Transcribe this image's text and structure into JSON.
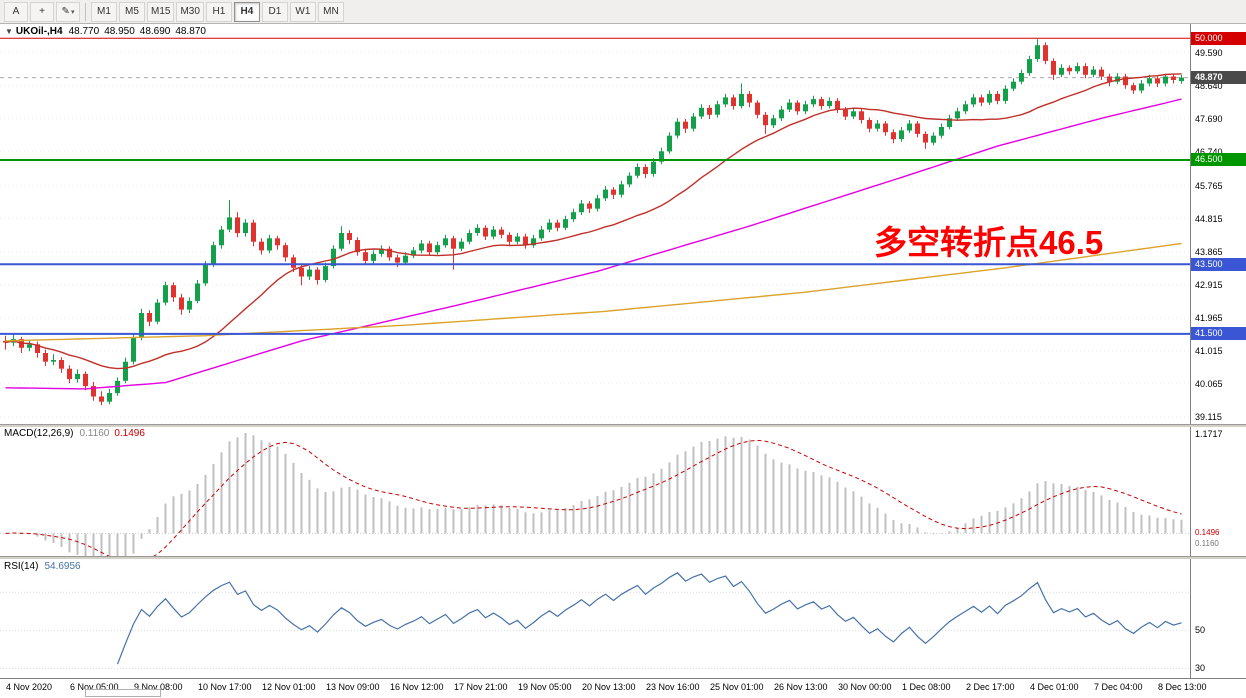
{
  "toolbar": {
    "buttons": [
      {
        "name": "text-tool-button",
        "label": "A"
      },
      {
        "name": "crosshair-button",
        "label": "+"
      },
      {
        "name": "draw-tools-button",
        "label": "✎",
        "dropdown": "▾"
      }
    ],
    "timeframes": [
      "M1",
      "M5",
      "M15",
      "M30",
      "H1",
      "H4",
      "D1",
      "W1",
      "MN"
    ],
    "active_timeframe": "H4"
  },
  "main_chart": {
    "symbol_line": {
      "collapse_icon": "▼",
      "symbol": "UKOil-,H4",
      "open": "48.770",
      "high": "48.950",
      "low": "48.690",
      "close": "48.870"
    },
    "annotation": {
      "text": "多空转折点46.5",
      "color": "#FF0000"
    },
    "price_axis_labels": [
      {
        "text": "49.590",
        "value": 49.59
      },
      {
        "text": "48.640",
        "value": 48.64
      },
      {
        "text": "47.690",
        "value": 47.69
      },
      {
        "text": "46.740",
        "value": 46.74
      },
      {
        "text": "45.765",
        "value": 45.765
      },
      {
        "text": "44.815",
        "value": 44.815
      },
      {
        "text": "43.865",
        "value": 43.865
      },
      {
        "text": "42.915",
        "value": 42.915
      },
      {
        "text": "41.965",
        "value": 41.965
      },
      {
        "text": "41.015",
        "value": 41.015
      },
      {
        "text": "40.065",
        "value": 40.065
      },
      {
        "text": "39.115",
        "value": 39.115
      }
    ],
    "bid": {
      "price": 48.87,
      "tag": "48.870",
      "tag_color": "#4a4a4a"
    },
    "hlines": [
      {
        "price": 50.0,
        "tag": "50.000",
        "color": "#d40000",
        "width": 1
      },
      {
        "price": 46.5,
        "tag": "46.500",
        "color": "#009600",
        "width": 2
      },
      {
        "price": 43.5,
        "tag": "43.500",
        "color": "#3a56d4",
        "width": 2
      },
      {
        "price": 41.5,
        "tag": "41.500",
        "color": "#3a56d4",
        "width": 2
      }
    ]
  },
  "macd_panel": {
    "name": "MACD(12,26,9)",
    "value_main": "0.1160",
    "value_signal": "0.1496",
    "axis_top": "1.1717",
    "value_tags": [
      {
        "text": "0.1496",
        "color": "#cc0000"
      },
      {
        "text": "0.1160",
        "color": "#777777"
      }
    ],
    "histogram_color": "#c0c0c0",
    "signal_color": "#cc0000"
  },
  "rsi_panel": {
    "name": "RSI(14)",
    "value": "54.6956",
    "line_color": "#4572a7",
    "axis_labels": [
      {
        "text": "50",
        "value": 50
      },
      {
        "text": "30",
        "value": 30
      }
    ]
  },
  "time_axis": {
    "labels": [
      "4 Nov 2020",
      "6 Nov 05:00",
      "9 Nov 08:00",
      "10 Nov 17:00",
      "12 Nov 01:00",
      "13 Nov 09:00",
      "16 Nov 12:00",
      "17 Nov 21:00",
      "19 Nov 05:00",
      "20 Nov 13:00",
      "23 Nov 16:00",
      "25 Nov 01:00",
      "26 Nov 13:00",
      "30 Nov 00:00",
      "1 Dec 08:00",
      "2 Dec 17:00",
      "4 Dec 01:00",
      "7 Dec 04:00",
      "8 Dec 13:00"
    ]
  },
  "chart_data": {
    "type": "candlestick",
    "symbol": "UKOil-",
    "timeframe": "H4",
    "title": "UKOil-,H4 48.770 48.950 48.690 48.870",
    "ylim": [
      38.91,
      50.41
    ],
    "up_color": "#14a04a",
    "down_color": "#e0322e",
    "candles": [
      [
        41.3,
        41.45,
        41.05,
        41.25
      ],
      [
        41.25,
        41.5,
        41.15,
        41.35
      ],
      [
        41.35,
        41.42,
        40.95,
        41.1
      ],
      [
        41.1,
        41.32,
        41.0,
        41.2
      ],
      [
        41.2,
        41.28,
        40.82,
        40.95
      ],
      [
        40.95,
        41.05,
        40.58,
        40.7
      ],
      [
        40.7,
        40.92,
        40.6,
        40.75
      ],
      [
        40.75,
        40.83,
        40.38,
        40.5
      ],
      [
        40.5,
        40.6,
        40.08,
        40.2
      ],
      [
        40.2,
        40.48,
        40.1,
        40.35
      ],
      [
        40.35,
        40.42,
        39.88,
        40.0
      ],
      [
        40.0,
        40.12,
        39.58,
        39.7
      ],
      [
        39.7,
        39.85,
        39.45,
        39.55
      ],
      [
        39.55,
        39.92,
        39.48,
        39.8
      ],
      [
        39.8,
        40.25,
        39.72,
        40.15
      ],
      [
        40.15,
        40.82,
        40.08,
        40.7
      ],
      [
        40.7,
        41.52,
        40.62,
        41.4
      ],
      [
        41.4,
        42.22,
        41.32,
        42.1
      ],
      [
        42.1,
        42.18,
        41.72,
        41.85
      ],
      [
        41.85,
        42.5,
        41.78,
        42.4
      ],
      [
        42.4,
        43.0,
        42.32,
        42.9
      ],
      [
        42.9,
        42.98,
        42.42,
        42.55
      ],
      [
        42.55,
        42.65,
        42.05,
        42.2
      ],
      [
        42.2,
        42.55,
        42.1,
        42.45
      ],
      [
        42.45,
        43.05,
        42.38,
        42.95
      ],
      [
        42.95,
        43.6,
        42.88,
        43.5
      ],
      [
        43.5,
        44.15,
        43.42,
        44.05
      ],
      [
        44.05,
        44.6,
        43.95,
        44.5
      ],
      [
        44.5,
        45.35,
        44.42,
        44.85
      ],
      [
        44.85,
        45.0,
        44.28,
        44.4
      ],
      [
        44.4,
        44.8,
        44.3,
        44.7
      ],
      [
        44.7,
        44.78,
        44.02,
        44.15
      ],
      [
        44.15,
        44.25,
        43.78,
        43.9
      ],
      [
        43.9,
        44.35,
        43.82,
        44.25
      ],
      [
        44.25,
        44.32,
        43.92,
        44.05
      ],
      [
        44.05,
        44.12,
        43.58,
        43.7
      ],
      [
        43.7,
        43.78,
        43.28,
        43.4
      ],
      [
        43.4,
        43.48,
        42.9,
        43.15
      ],
      [
        43.15,
        43.45,
        43.05,
        43.35
      ],
      [
        43.35,
        43.42,
        42.92,
        43.05
      ],
      [
        43.05,
        43.55,
        42.98,
        43.45
      ],
      [
        43.45,
        44.05,
        43.38,
        43.95
      ],
      [
        43.95,
        44.6,
        43.88,
        44.4
      ],
      [
        44.4,
        44.48,
        44.08,
        44.2
      ],
      [
        44.2,
        44.28,
        43.75,
        43.85
      ],
      [
        43.85,
        43.95,
        43.48,
        43.6
      ],
      [
        43.6,
        43.9,
        43.52,
        43.8
      ],
      [
        43.8,
        44.05,
        43.72,
        43.95
      ],
      [
        43.95,
        44.02,
        43.6,
        43.7
      ],
      [
        43.7,
        43.78,
        43.42,
        43.55
      ],
      [
        43.55,
        43.85,
        43.48,
        43.75
      ],
      [
        43.75,
        44.0,
        43.68,
        43.9
      ],
      [
        43.9,
        44.2,
        43.82,
        44.1
      ],
      [
        44.1,
        44.18,
        43.75,
        43.85
      ],
      [
        43.85,
        44.15,
        43.78,
        44.05
      ],
      [
        44.05,
        44.35,
        43.98,
        44.25
      ],
      [
        44.25,
        44.32,
        43.35,
        43.95
      ],
      [
        43.95,
        44.25,
        43.88,
        44.15
      ],
      [
        44.15,
        44.5,
        44.08,
        44.4
      ],
      [
        44.4,
        44.65,
        44.32,
        44.55
      ],
      [
        44.55,
        44.62,
        44.2,
        44.3
      ],
      [
        44.3,
        44.6,
        44.22,
        44.5
      ],
      [
        44.5,
        44.58,
        44.25,
        44.35
      ],
      [
        44.35,
        44.42,
        44.05,
        44.15
      ],
      [
        44.15,
        44.4,
        44.08,
        44.3
      ],
      [
        44.3,
        44.38,
        43.95,
        44.05
      ],
      [
        44.05,
        44.35,
        43.98,
        44.25
      ],
      [
        44.25,
        44.6,
        44.18,
        44.5
      ],
      [
        44.5,
        44.8,
        44.42,
        44.7
      ],
      [
        44.7,
        44.78,
        44.45,
        44.55
      ],
      [
        44.55,
        44.9,
        44.48,
        44.8
      ],
      [
        44.8,
        45.1,
        44.72,
        45.0
      ],
      [
        45.0,
        45.35,
        44.92,
        45.25
      ],
      [
        45.25,
        45.32,
        44.98,
        45.1
      ],
      [
        45.1,
        45.5,
        45.02,
        45.4
      ],
      [
        45.4,
        45.75,
        45.32,
        45.65
      ],
      [
        45.65,
        45.72,
        45.38,
        45.5
      ],
      [
        45.5,
        45.9,
        45.42,
        45.8
      ],
      [
        45.8,
        46.15,
        45.72,
        46.05
      ],
      [
        46.05,
        46.4,
        45.98,
        46.3
      ],
      [
        46.3,
        46.38,
        45.98,
        46.1
      ],
      [
        46.1,
        46.55,
        46.02,
        46.45
      ],
      [
        46.45,
        46.85,
        46.38,
        46.75
      ],
      [
        46.75,
        47.3,
        46.68,
        47.2
      ],
      [
        47.2,
        47.7,
        47.12,
        47.6
      ],
      [
        47.6,
        47.68,
        47.28,
        47.4
      ],
      [
        47.4,
        47.85,
        47.32,
        47.75
      ],
      [
        47.75,
        48.1,
        47.68,
        48.0
      ],
      [
        48.0,
        48.08,
        47.68,
        47.8
      ],
      [
        47.8,
        48.2,
        47.72,
        48.1
      ],
      [
        48.1,
        48.4,
        48.02,
        48.3
      ],
      [
        48.3,
        48.38,
        47.95,
        48.05
      ],
      [
        48.05,
        48.7,
        47.98,
        48.4
      ],
      [
        48.4,
        48.48,
        48.02,
        48.15
      ],
      [
        48.15,
        48.22,
        47.7,
        47.8
      ],
      [
        47.8,
        47.88,
        47.25,
        47.5
      ],
      [
        47.5,
        47.8,
        47.42,
        47.7
      ],
      [
        47.7,
        48.05,
        47.62,
        47.95
      ],
      [
        47.95,
        48.25,
        47.88,
        48.15
      ],
      [
        48.15,
        48.22,
        47.8,
        47.9
      ],
      [
        47.9,
        48.2,
        47.82,
        48.1
      ],
      [
        48.1,
        48.35,
        48.02,
        48.25
      ],
      [
        48.25,
        48.32,
        47.95,
        48.05
      ],
      [
        48.05,
        48.3,
        47.98,
        48.2
      ],
      [
        48.2,
        48.28,
        47.85,
        47.95
      ],
      [
        47.95,
        48.02,
        47.65,
        47.75
      ],
      [
        47.75,
        48.0,
        47.68,
        47.9
      ],
      [
        47.9,
        47.98,
        47.55,
        47.65
      ],
      [
        47.65,
        47.72,
        47.3,
        47.4
      ],
      [
        47.4,
        47.65,
        47.32,
        47.55
      ],
      [
        47.55,
        47.62,
        47.2,
        47.3
      ],
      [
        47.3,
        47.38,
        46.98,
        47.1
      ],
      [
        47.1,
        47.45,
        47.02,
        47.35
      ],
      [
        47.35,
        47.65,
        47.28,
        47.55
      ],
      [
        47.55,
        47.62,
        47.15,
        47.25
      ],
      [
        47.25,
        47.32,
        46.82,
        47.0
      ],
      [
        47.0,
        47.3,
        46.92,
        47.2
      ],
      [
        47.2,
        47.55,
        47.12,
        47.45
      ],
      [
        47.45,
        47.8,
        47.38,
        47.7
      ],
      [
        47.7,
        48.0,
        47.62,
        47.9
      ],
      [
        47.9,
        48.2,
        47.82,
        48.1
      ],
      [
        48.1,
        48.4,
        48.02,
        48.3
      ],
      [
        48.3,
        48.38,
        48.05,
        48.15
      ],
      [
        48.15,
        48.5,
        48.08,
        48.4
      ],
      [
        48.4,
        48.48,
        48.1,
        48.2
      ],
      [
        48.2,
        48.65,
        48.12,
        48.55
      ],
      [
        48.55,
        48.85,
        48.48,
        48.75
      ],
      [
        48.75,
        49.1,
        48.68,
        49.0
      ],
      [
        49.0,
        49.5,
        48.92,
        49.4
      ],
      [
        49.4,
        49.97,
        49.32,
        49.8
      ],
      [
        49.8,
        49.88,
        49.25,
        49.35
      ],
      [
        49.35,
        49.42,
        48.8,
        48.95
      ],
      [
        48.95,
        49.25,
        48.88,
        49.15
      ],
      [
        49.15,
        49.22,
        48.95,
        49.05
      ],
      [
        49.05,
        49.3,
        48.98,
        49.2
      ],
      [
        49.2,
        49.28,
        48.85,
        48.95
      ],
      [
        48.95,
        49.2,
        48.88,
        49.1
      ],
      [
        49.1,
        49.18,
        48.8,
        48.9
      ],
      [
        48.9,
        48.98,
        48.62,
        48.75
      ],
      [
        48.75,
        49.0,
        48.68,
        48.9
      ],
      [
        48.9,
        48.98,
        48.55,
        48.65
      ],
      [
        48.65,
        48.72,
        48.4,
        48.5
      ],
      [
        48.5,
        48.8,
        48.42,
        48.7
      ],
      [
        48.7,
        48.95,
        48.62,
        48.85
      ],
      [
        48.85,
        48.92,
        48.6,
        48.7
      ],
      [
        48.7,
        48.98,
        48.62,
        48.9
      ],
      [
        48.9,
        48.97,
        48.7,
        48.8
      ],
      [
        48.77,
        48.95,
        48.69,
        48.87
      ]
    ],
    "moving_averages": [
      {
        "name": "fast-ma",
        "color": "#c03028",
        "type": "sma",
        "period": 21
      },
      {
        "name": "medium-ma",
        "color": "#e400e4",
        "points": [
          [
            0,
            39.95
          ],
          [
            10,
            39.92
          ],
          [
            20,
            40.1
          ],
          [
            37,
            41.3
          ],
          [
            56,
            42.3
          ],
          [
            74,
            43.3
          ],
          [
            93,
            44.6
          ],
          [
            112,
            46.0
          ],
          [
            124,
            46.9
          ],
          [
            137,
            47.7
          ],
          [
            147,
            48.25
          ]
        ]
      },
      {
        "name": "slow-ma",
        "color": "#dba32a",
        "points": [
          [
            0,
            41.3
          ],
          [
            25,
            41.45
          ],
          [
            50,
            41.75
          ],
          [
            75,
            42.15
          ],
          [
            100,
            42.7
          ],
          [
            125,
            43.4
          ],
          [
            147,
            44.1
          ]
        ]
      }
    ],
    "indicators": {
      "macd": {
        "fast": 12,
        "slow": 26,
        "signal": 9,
        "current_main": 0.116,
        "current_signal": 0.1496,
        "axis_max_label": 1.1717
      },
      "rsi": {
        "period": 14,
        "current": 54.6956
      }
    }
  }
}
